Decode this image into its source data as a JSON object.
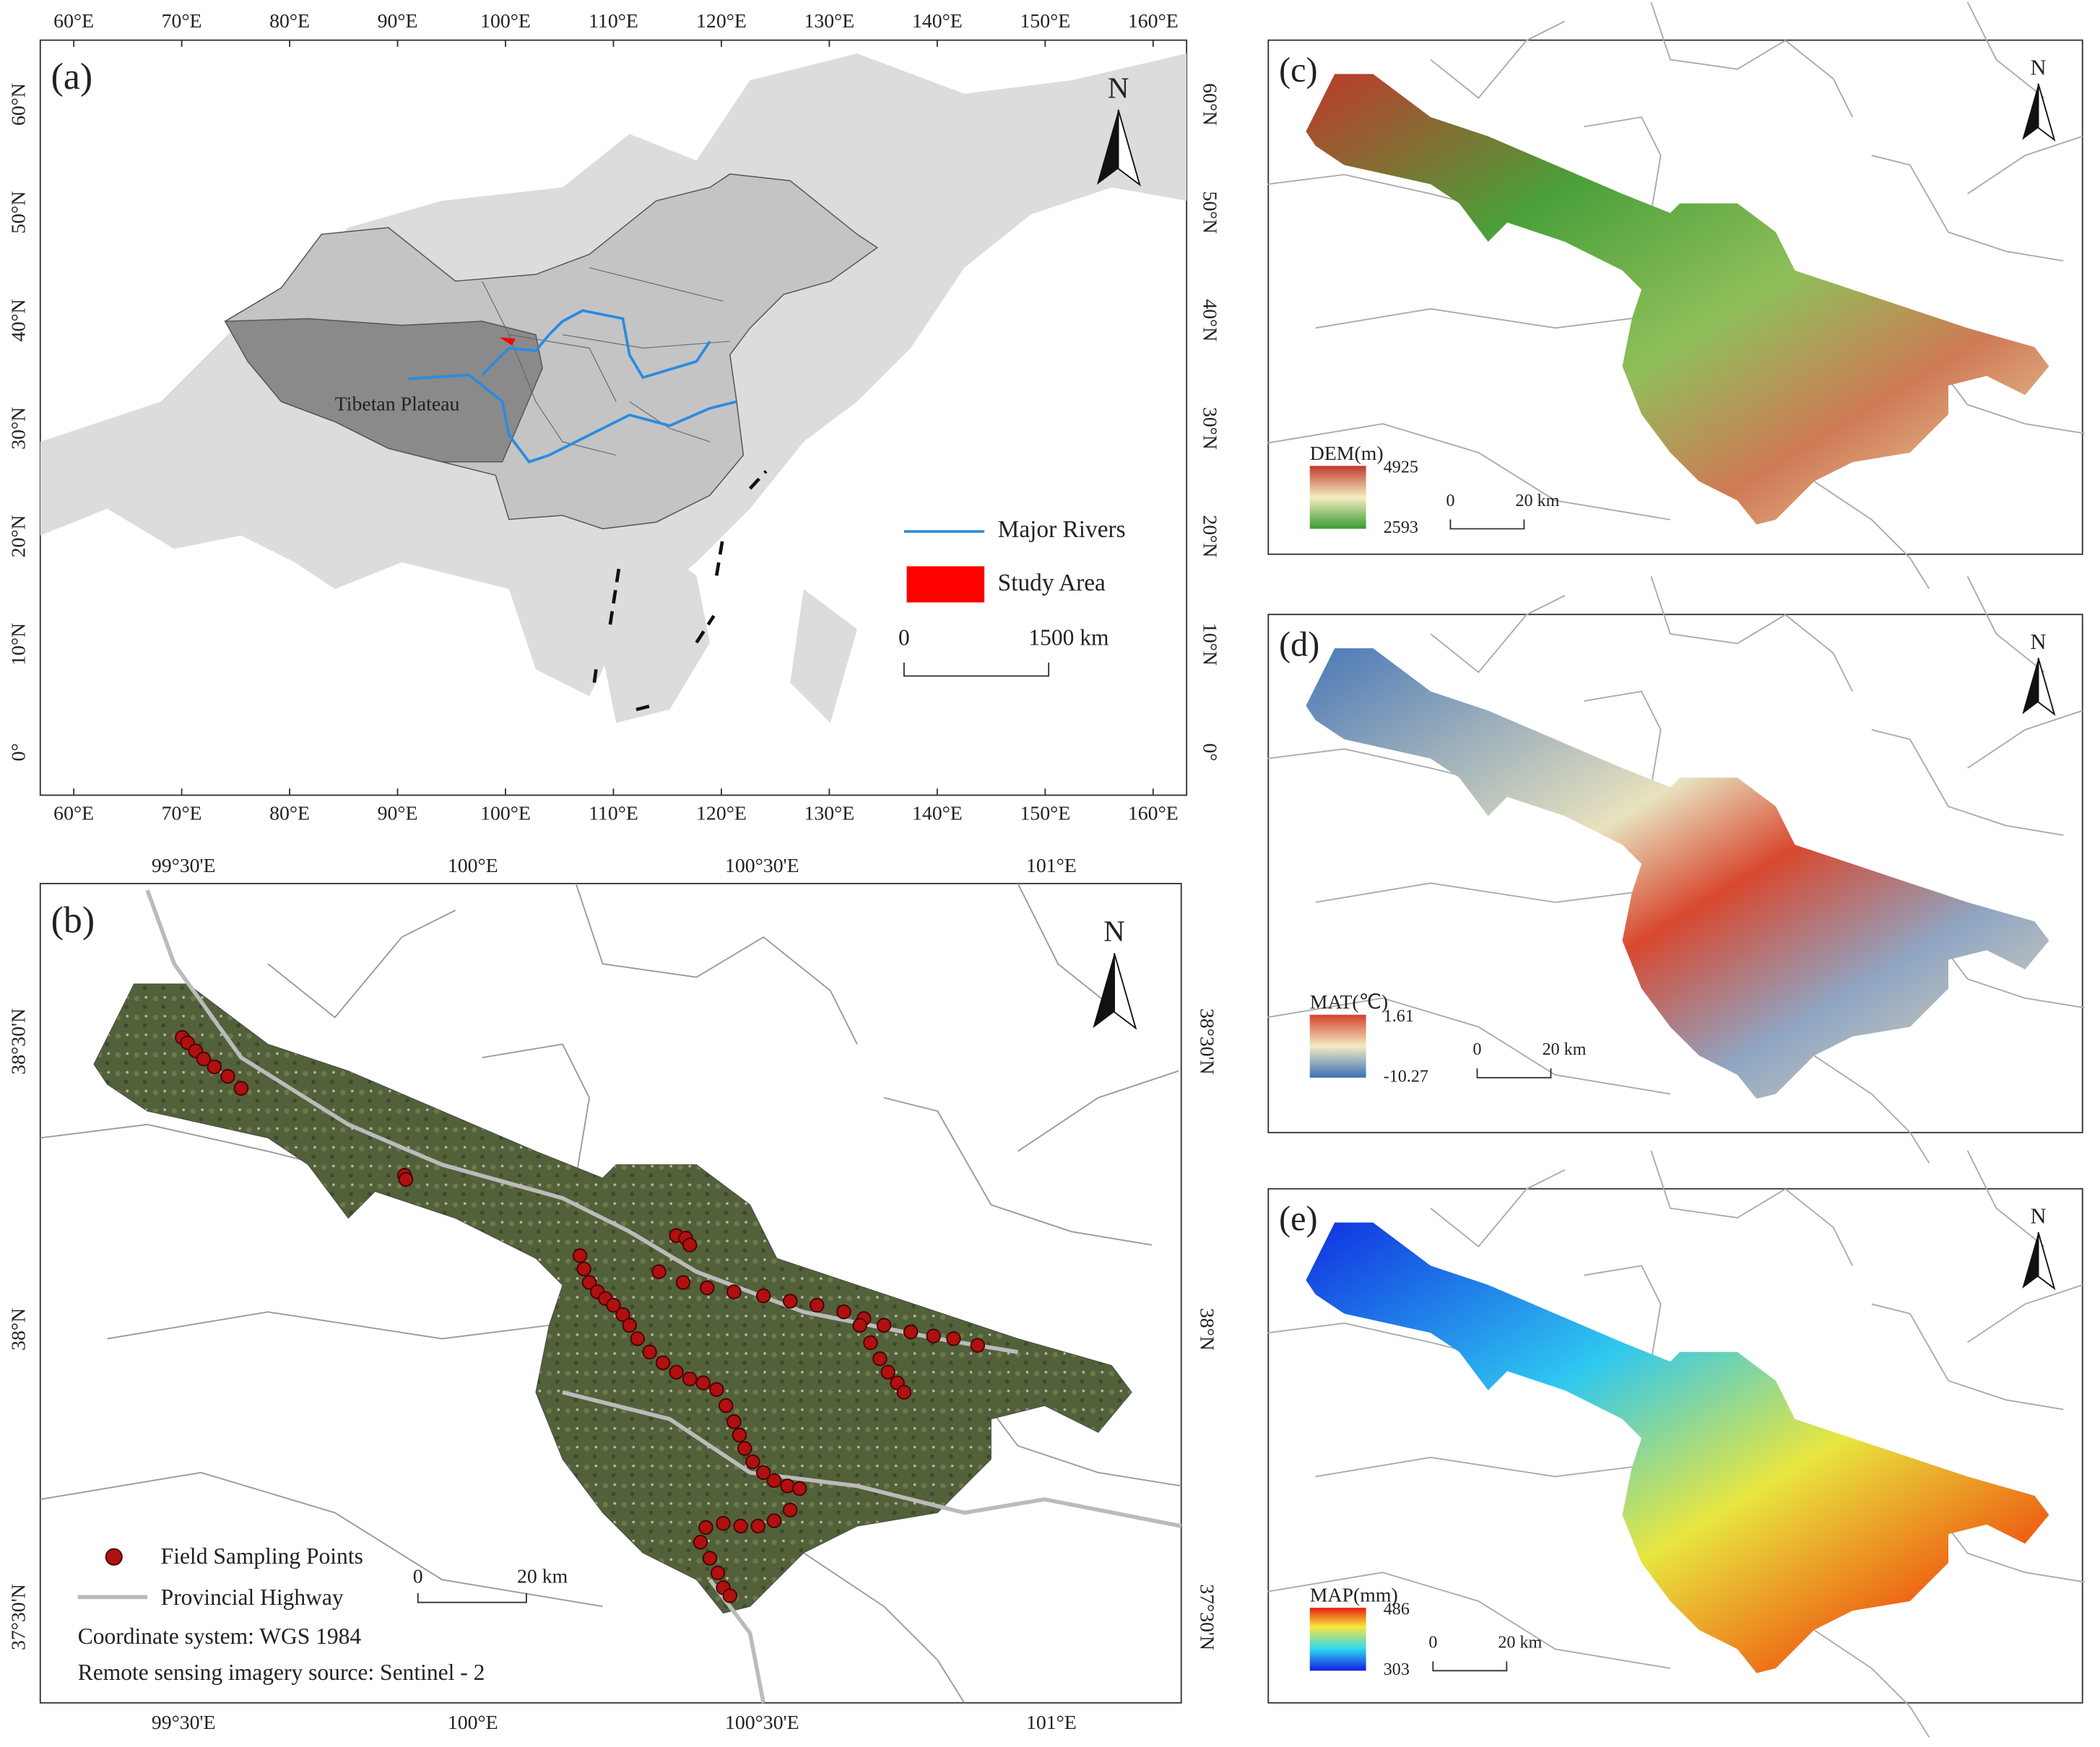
{
  "panel_a": {
    "label": "(a)",
    "x_ticks": [
      "60°E",
      "70°E",
      "80°E",
      "90°E",
      "100°E",
      "110°E",
      "120°E",
      "130°E",
      "140°E",
      "150°E",
      "160°E"
    ],
    "y_ticks": [
      "60°N",
      "50°N",
      "40°N",
      "30°N",
      "20°N",
      "10°N",
      "0°"
    ],
    "region_label": "Tibetan Plateau",
    "north": "N",
    "legend": [
      "Major Rivers",
      "Study Area"
    ],
    "scale_bar": [
      "0",
      "1500 km"
    ]
  },
  "panel_b": {
    "label": "(b)",
    "x_ticks": [
      "99°30'E",
      "100°E",
      "100°30'E",
      "101°E"
    ],
    "y_ticks": [
      "38°30'N",
      "38°N",
      "37°30'N"
    ],
    "north": "N",
    "legend": [
      "Field Sampling Points",
      "Provincial Highway"
    ],
    "notes": [
      "Coordinate system: WGS 1984",
      "Remote sensing imagery source: Sentinel - 2"
    ],
    "scale_bar": [
      "0",
      "20 km"
    ]
  },
  "panel_c": {
    "label": "(c)",
    "north": "N",
    "colorbar": {
      "title": "DEM(m)",
      "max": "4925",
      "min": "2593"
    },
    "scale_bar": [
      "0",
      "20 km"
    ]
  },
  "panel_d": {
    "label": "(d)",
    "north": "N",
    "colorbar": {
      "title": "MAT(℃)",
      "max": "1.61",
      "min": "-10.27"
    },
    "scale_bar": [
      "0",
      "20 km"
    ]
  },
  "panel_e": {
    "label": "(e)",
    "north": "N",
    "colorbar": {
      "title": "MAP(mm)",
      "max": "486",
      "min": "303"
    },
    "scale_bar": [
      "0",
      "20 km"
    ]
  }
}
